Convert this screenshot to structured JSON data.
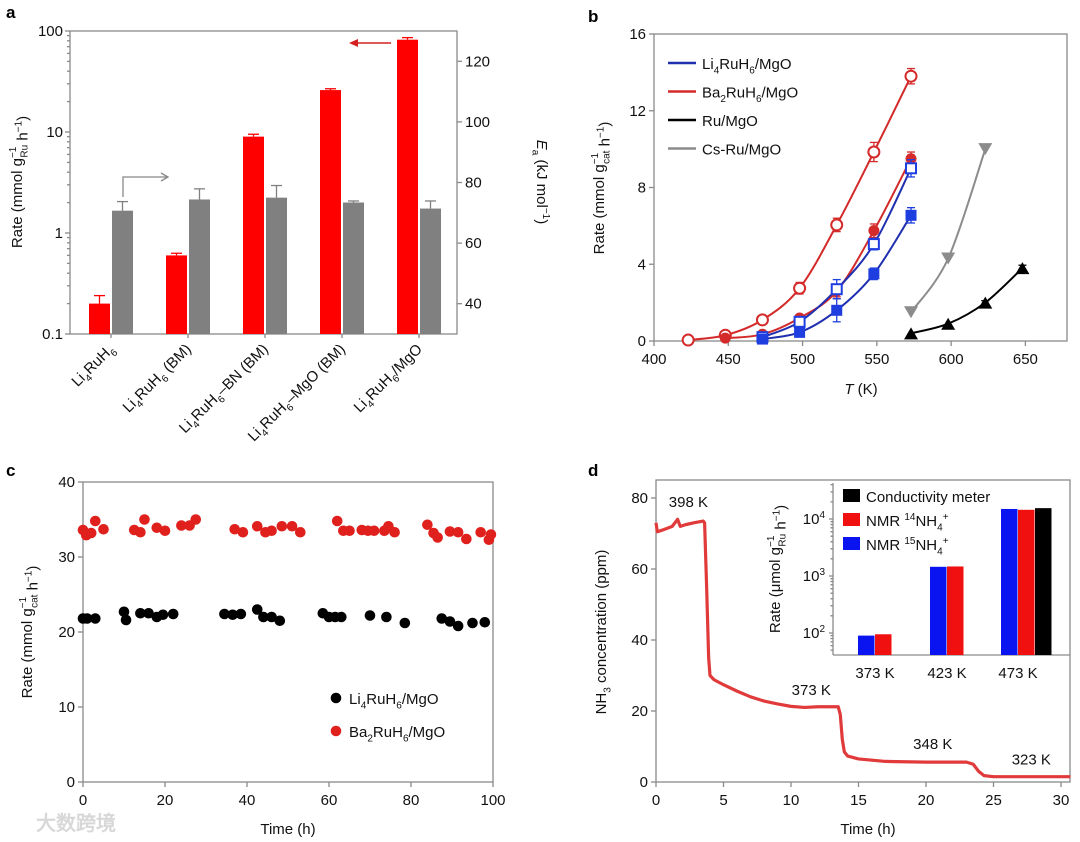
{
  "watermark": "大数跨境",
  "chart_data": [
    {
      "panel": "a",
      "type": "bar",
      "categories": [
        [
          "Li",
          {
            "sub": "4"
          },
          "RuH",
          {
            "sub": "6"
          }
        ],
        [
          "Li",
          {
            "sub": "4"
          },
          "RuH",
          {
            "sub": "6"
          },
          " (BM)"
        ],
        [
          "Li",
          {
            "sub": "4"
          },
          "RuH",
          {
            "sub": "6"
          },
          "–BN (BM)"
        ],
        [
          "Li",
          {
            "sub": "4"
          },
          "RuH",
          {
            "sub": "6"
          },
          "–MgO (BM)"
        ],
        [
          "Li",
          {
            "sub": "4"
          },
          "RuH",
          {
            "sub": "6"
          },
          "/MgO"
        ]
      ],
      "series": [
        {
          "name": "Rate",
          "axis": "left",
          "color": "#ff0000",
          "values": [
            0.2,
            0.6,
            9,
            26,
            82
          ],
          "errors": [
            0.04,
            0.03,
            0.5,
            0.8,
            4
          ]
        },
        {
          "name": "Ea",
          "axis": "right",
          "color": "#808080",
          "values": [
            70.7,
            74.4,
            75,
            73.4,
            71.4
          ],
          "errors": [
            3,
            3.5,
            4,
            0.5,
            2.5
          ]
        }
      ],
      "ylabel": [
        "Rate (mmol g",
        {
          "sup": "−1",
          "sub": "Ru"
        },
        " h",
        {
          "sup": "−1"
        },
        ")"
      ],
      "ylabel_right": [
        {
          "i": "E"
        },
        {
          "sub": "a"
        },
        " (kJ mol",
        {
          "sup": "−1"
        },
        ")"
      ],
      "yscale": "log",
      "ylim": [
        0.1,
        100
      ],
      "yticks": [
        "0.1",
        "1",
        "10",
        "100"
      ],
      "ylim_right": [
        30,
        130
      ],
      "yticks_right": [
        40,
        60,
        80,
        100,
        120
      ],
      "annotations": [
        "arrow pointing right to Ea axis (gray)",
        "arrow pointing left to Rate axis (red)"
      ]
    },
    {
      "panel": "b",
      "type": "line",
      "xlabel": [
        {
          "i": "T"
        },
        " (K)"
      ],
      "ylabel": [
        "Rate (mmol g",
        {
          "sup": "−1",
          "sub": "cat"
        },
        " h",
        {
          "sup": "−1"
        },
        ")"
      ],
      "xlim": [
        400,
        678
      ],
      "xticks": [
        400,
        450,
        500,
        550,
        600,
        650
      ],
      "ylim": [
        0,
        16
      ],
      "yticks": [
        0,
        4,
        8,
        12,
        16
      ],
      "legend_position": "top-left",
      "legend": [
        {
          "label": [
            "Li",
            {
              "sub": "4"
            },
            "RuH",
            {
              "sub": "6"
            },
            "/MgO"
          ],
          "color": "#1f2fb0"
        },
        {
          "label": [
            "Ba",
            {
              "sub": "2"
            },
            "RuH",
            {
              "sub": "6"
            },
            "/MgO"
          ],
          "color": "#d42a2a"
        },
        {
          "label": [
            "Ru/MgO"
          ],
          "color": "#000000"
        },
        {
          "label": [
            "Cs-Ru/MgO"
          ],
          "color": "#8c8c8c"
        }
      ],
      "series": [
        {
          "name": "Ba2RuH6/MgO (open)",
          "marker": "open-circle",
          "color": "#d42a2a",
          "x": [
            423,
            448,
            473,
            498,
            523,
            548,
            573
          ],
          "y": [
            0.05,
            0.3,
            1.1,
            2.75,
            6.05,
            9.85,
            13.8
          ],
          "err": [
            0.1,
            0.1,
            0.15,
            0.3,
            0.35,
            0.5,
            0.4
          ]
        },
        {
          "name": "Ba2RuH6/MgO (filled)",
          "marker": "filled-circle",
          "color": "#d42a2a",
          "x": [
            448,
            473,
            498,
            523,
            548,
            573
          ],
          "y": [
            0.15,
            0.35,
            1.2,
            2.6,
            5.75,
            9.5
          ],
          "err": [
            0.05,
            0.1,
            0.15,
            0.3,
            0.35,
            0.35
          ]
        },
        {
          "name": "Li4RuH6/MgO (open)",
          "marker": "open-square",
          "color": "#1f3ee0",
          "x": [
            473,
            498,
            523,
            548,
            573
          ],
          "y": [
            0.2,
            1.0,
            2.7,
            5.05,
            9.0
          ],
          "err": [
            0.05,
            0.2,
            0.5,
            0.3,
            0.45
          ]
        },
        {
          "name": "Li4RuH6/MgO (filled)",
          "marker": "filled-square",
          "color": "#1f3ee0",
          "x": [
            473,
            498,
            523,
            548,
            573
          ],
          "y": [
            0.1,
            0.45,
            1.6,
            3.5,
            6.55
          ],
          "err": [
            0.05,
            0.1,
            0.6,
            0.3,
            0.4
          ]
        },
        {
          "name": "Cs-Ru/MgO",
          "marker": "down-triangle",
          "color": "#8c8c8c",
          "x": [
            573,
            598,
            623
          ],
          "y": [
            1.5,
            4.3,
            10.0
          ],
          "err": [
            0,
            0,
            0
          ]
        },
        {
          "name": "Ru/MgO",
          "marker": "up-triangle",
          "color": "#000000",
          "x": [
            573,
            598,
            623,
            648
          ],
          "y": [
            0.4,
            0.9,
            2.0,
            3.8
          ],
          "err": [
            0,
            0,
            0.1,
            0.15
          ]
        }
      ]
    },
    {
      "panel": "c",
      "type": "scatter",
      "xlabel": [
        "Time (h)"
      ],
      "ylabel": [
        "Rate (mmol g",
        {
          "sup": "−1",
          "sub": "cat"
        },
        " h",
        {
          "sup": "−1"
        },
        ")"
      ],
      "xlim": [
        0,
        100
      ],
      "xticks": [
        0,
        20,
        40,
        60,
        80,
        100
      ],
      "ylim": [
        0,
        40
      ],
      "yticks": [
        0,
        10,
        20,
        30,
        40
      ],
      "legend_position": "bottom-right",
      "series": [
        {
          "name": [
            "Li",
            {
              "sub": "4"
            },
            "RuH",
            {
              "sub": "6"
            },
            "/MgO"
          ],
          "color": "#000000",
          "points": [
            [
              0,
              21.8
            ],
            [
              1,
              21.8
            ],
            [
              3,
              21.8
            ],
            [
              10,
              22.7
            ],
            [
              10.5,
              21.6
            ],
            [
              14,
              22.5
            ],
            [
              16,
              22.5
            ],
            [
              18,
              22
            ],
            [
              19.5,
              22.3
            ],
            [
              22,
              22.4
            ],
            [
              34.5,
              22.4
            ],
            [
              36.5,
              22.3
            ],
            [
              38.5,
              22.4
            ],
            [
              42.5,
              23
            ],
            [
              44,
              22
            ],
            [
              46,
              22
            ],
            [
              48,
              21.5
            ],
            [
              58.5,
              22.5
            ],
            [
              60,
              22
            ],
            [
              61.5,
              22
            ],
            [
              63,
              22
            ],
            [
              70,
              22.2
            ],
            [
              74,
              22
            ],
            [
              78.5,
              21.2
            ],
            [
              87.5,
              21.8
            ],
            [
              89.5,
              21.4
            ],
            [
              91.5,
              20.8
            ],
            [
              95,
              21.2
            ],
            [
              98,
              21.3
            ]
          ]
        },
        {
          "name": [
            "Ba",
            {
              "sub": "2"
            },
            "RuH",
            {
              "sub": "6"
            },
            "/MgO"
          ],
          "color": "#e0201c",
          "points": [
            [
              0,
              33.6
            ],
            [
              0.8,
              32.9
            ],
            [
              2,
              33.2
            ],
            [
              3,
              34.8
            ],
            [
              5,
              33.7
            ],
            [
              12.5,
              33.6
            ],
            [
              14,
              33.3
            ],
            [
              15,
              35
            ],
            [
              18,
              33.9
            ],
            [
              20,
              33.5
            ],
            [
              24,
              34.2
            ],
            [
              26,
              34.2
            ],
            [
              27.5,
              35
            ],
            [
              37,
              33.7
            ],
            [
              39,
              33.3
            ],
            [
              42.5,
              34.1
            ],
            [
              44.5,
              33.3
            ],
            [
              46,
              33.5
            ],
            [
              48.5,
              34.1
            ],
            [
              51,
              34.1
            ],
            [
              53,
              33.3
            ],
            [
              62,
              34.8
            ],
            [
              63.5,
              33.5
            ],
            [
              65,
              33.5
            ],
            [
              68,
              33.6
            ],
            [
              69.5,
              33.5
            ],
            [
              71,
              33.5
            ],
            [
              73.5,
              33.5
            ],
            [
              74.5,
              34.1
            ],
            [
              76,
              33.3
            ],
            [
              84,
              34.3
            ],
            [
              85.5,
              33.2
            ],
            [
              86.5,
              32.6
            ],
            [
              89.5,
              33.4
            ],
            [
              91.5,
              33.3
            ],
            [
              93.5,
              32.4
            ],
            [
              97,
              33.3
            ],
            [
              99,
              32.3
            ],
            [
              99.5,
              33
            ]
          ]
        }
      ]
    },
    {
      "panel": "d",
      "type": "line",
      "xlabel": [
        "Time (h)"
      ],
      "ylabel": [
        "NH",
        {
          "sub": "3"
        },
        " concentration (ppm)"
      ],
      "xlim": [
        0,
        30.7
      ],
      "xticks": [
        0,
        5,
        10,
        15,
        20,
        25,
        30
      ],
      "ylim": [
        0,
        85
      ],
      "yticks": [
        0,
        20,
        40,
        60,
        80
      ],
      "series": [
        {
          "name": "NH3 concentration",
          "color": "#e03a3a",
          "x": [
            0,
            0.1,
            0.5,
            1.2,
            1.6,
            1.8,
            2.2,
            2.8,
            3.5,
            3.6,
            3.75,
            3.9,
            4.0,
            4.3,
            5,
            6,
            7,
            8,
            9,
            10,
            11,
            12,
            13.5,
            13.65,
            13.8,
            13.95,
            14.2,
            15,
            17,
            20,
            23,
            23.5,
            23.9,
            24.3,
            25,
            30.7
          ],
          "y": [
            73,
            70.5,
            71,
            72,
            74,
            72,
            72.5,
            73,
            73.5,
            73,
            55,
            35,
            30,
            28.8,
            27.4,
            25.6,
            24,
            22.8,
            22,
            21.3,
            21,
            21.2,
            21.2,
            19,
            12,
            8.5,
            7.3,
            6.5,
            5.8,
            5.6,
            5.6,
            5,
            3,
            1.8,
            1.5,
            1.5
          ]
        }
      ],
      "annotations": [
        {
          "text": "398 K"
        },
        {
          "text": "373 K"
        },
        {
          "text": "348 K"
        },
        {
          "text": "323 K"
        }
      ],
      "inset": {
        "type": "bar",
        "yscale": "log",
        "ylim": [
          41,
          42700
        ],
        "yticks": [
          {
            "base": "10",
            "exp": "2"
          },
          {
            "base": "10",
            "exp": "3"
          },
          {
            "base": "10",
            "exp": "4"
          }
        ],
        "ylabel": [
          "Rate (μmol g",
          {
            "sup": "−1",
            "sub": "Ru"
          },
          " h",
          {
            "sup": "−1"
          },
          ")"
        ],
        "categories": [
          "373 K",
          "423 K",
          "473 K"
        ],
        "legend_position": "top-left",
        "series": [
          {
            "name": [
              "NMR ",
              {
                "sup": "15"
              },
              "NH",
              {
                "sub": "4"
              },
              {
                "sup": "+"
              }
            ],
            "color": "#0a14f0",
            "values": [
              90,
              1450,
              15000
            ]
          },
          {
            "name": [
              "NMR ",
              {
                "sup": "14"
              },
              "NH",
              {
                "sub": "4"
              },
              {
                "sup": "+"
              }
            ],
            "color": "#f01010",
            "values": [
              95,
              1470,
              14500
            ]
          },
          {
            "name": [
              "Conductivity meter"
            ],
            "color": "#000000",
            "values": [
              null,
              null,
              15500
            ]
          }
        ],
        "legend_order": [
          2,
          1,
          0
        ]
      }
    }
  ]
}
